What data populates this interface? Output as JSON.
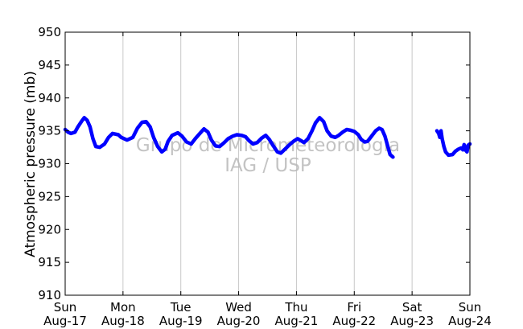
{
  "chart_data": {
    "type": "line",
    "ylabel": "Atmospheric pressure (mb)",
    "ylim": [
      910,
      950
    ],
    "yticks": [
      910,
      915,
      920,
      925,
      930,
      935,
      940,
      945,
      950
    ],
    "xlim": [
      0,
      7
    ],
    "xticks": [
      {
        "x": 0,
        "day": "Sun",
        "date": "Aug-17"
      },
      {
        "x": 1,
        "day": "Mon",
        "date": "Aug-18"
      },
      {
        "x": 2,
        "day": "Tue",
        "date": "Aug-19"
      },
      {
        "x": 3,
        "day": "Wed",
        "date": "Aug-20"
      },
      {
        "x": 4,
        "day": "Thu",
        "date": "Aug-21"
      },
      {
        "x": 5,
        "day": "Fri",
        "date": "Aug-22"
      },
      {
        "x": 6,
        "day": "Sat",
        "date": "Aug-23"
      },
      {
        "x": 7,
        "day": "Sun",
        "date": "Aug-24"
      }
    ],
    "grid": "vertical",
    "line_color": "#0000ff",
    "watermark": [
      "Grupo de Micrometeorologia",
      "IAG / USP"
    ],
    "series": [
      {
        "segments": [
          [
            [
              0.0,
              935.2
            ],
            [
              0.05,
              934.8
            ],
            [
              0.1,
              934.6
            ],
            [
              0.17,
              934.8
            ],
            [
              0.22,
              935.6
            ],
            [
              0.28,
              936.4
            ],
            [
              0.33,
              937.0
            ],
            [
              0.38,
              936.6
            ],
            [
              0.43,
              935.6
            ],
            [
              0.48,
              933.8
            ],
            [
              0.53,
              932.6
            ],
            [
              0.6,
              932.5
            ],
            [
              0.68,
              933.0
            ],
            [
              0.75,
              934.0
            ],
            [
              0.82,
              934.6
            ],
            [
              0.92,
              934.4
            ],
            [
              0.97,
              934.0
            ],
            [
              1.07,
              933.6
            ],
            [
              1.17,
              934.0
            ],
            [
              1.25,
              935.4
            ],
            [
              1.33,
              936.3
            ],
            [
              1.4,
              936.4
            ],
            [
              1.47,
              935.6
            ],
            [
              1.53,
              934.0
            ],
            [
              1.6,
              932.6
            ],
            [
              1.67,
              931.8
            ],
            [
              1.73,
              932.2
            ],
            [
              1.78,
              933.4
            ],
            [
              1.85,
              934.3
            ],
            [
              1.95,
              934.7
            ],
            [
              2.02,
              934.2
            ],
            [
              2.1,
              933.3
            ],
            [
              2.18,
              933.0
            ],
            [
              2.25,
              933.8
            ],
            [
              2.33,
              934.6
            ],
            [
              2.4,
              935.3
            ],
            [
              2.47,
              934.8
            ],
            [
              2.53,
              933.6
            ],
            [
              2.6,
              932.7
            ],
            [
              2.67,
              932.6
            ],
            [
              2.75,
              933.2
            ],
            [
              2.82,
              933.8
            ],
            [
              2.9,
              934.2
            ],
            [
              2.97,
              934.4
            ],
            [
              3.05,
              934.3
            ],
            [
              3.12,
              934.1
            ],
            [
              3.18,
              933.5
            ],
            [
              3.25,
              933.0
            ],
            [
              3.32,
              933.2
            ],
            [
              3.4,
              933.9
            ],
            [
              3.47,
              934.3
            ],
            [
              3.53,
              933.7
            ],
            [
              3.6,
              932.7
            ],
            [
              3.67,
              931.8
            ],
            [
              3.73,
              931.6
            ],
            [
              3.8,
              932.2
            ],
            [
              3.87,
              932.8
            ],
            [
              3.95,
              933.4
            ],
            [
              4.02,
              933.8
            ],
            [
              4.08,
              933.5
            ],
            [
              4.13,
              933.2
            ],
            [
              4.2,
              933.8
            ],
            [
              4.27,
              935.0
            ],
            [
              4.33,
              936.2
            ],
            [
              4.4,
              937.0
            ],
            [
              4.47,
              936.4
            ],
            [
              4.53,
              935.0
            ],
            [
              4.6,
              934.2
            ],
            [
              4.67,
              934.0
            ],
            [
              4.73,
              934.3
            ],
            [
              4.8,
              934.8
            ],
            [
              4.87,
              935.2
            ],
            [
              4.93,
              935.1
            ],
            [
              5.0,
              934.9
            ],
            [
              5.07,
              934.4
            ],
            [
              5.12,
              933.7
            ],
            [
              5.18,
              933.3
            ],
            [
              5.23,
              933.4
            ],
            [
              5.3,
              934.2
            ],
            [
              5.37,
              935.0
            ],
            [
              5.43,
              935.4
            ],
            [
              5.48,
              935.2
            ],
            [
              5.53,
              934.2
            ],
            [
              5.58,
              932.6
            ],
            [
              5.62,
              931.4
            ],
            [
              5.67,
              931.0
            ]
          ],
          [
            [
              6.43,
              935.0
            ],
            [
              6.46,
              934.6
            ],
            [
              6.48,
              934.0
            ],
            [
              6.5,
              935.0
            ],
            [
              6.52,
              933.8
            ],
            [
              6.55,
              932.6
            ],
            [
              6.58,
              931.8
            ],
            [
              6.63,
              931.3
            ],
            [
              6.7,
              931.4
            ],
            [
              6.75,
              931.9
            ],
            [
              6.8,
              932.2
            ],
            [
              6.85,
              932.4
            ],
            [
              6.88,
              932.1
            ],
            [
              6.9,
              932.9
            ],
            [
              6.93,
              932.0
            ],
            [
              6.95,
              931.8
            ],
            [
              6.97,
              932.8
            ],
            [
              7.0,
              933.0
            ]
          ]
        ]
      }
    ]
  }
}
